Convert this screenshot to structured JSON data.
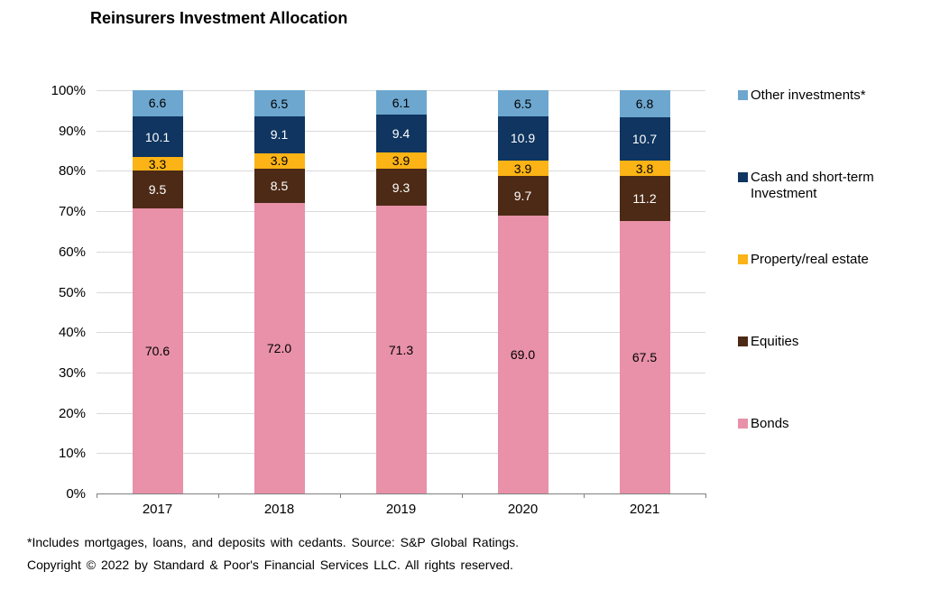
{
  "title": "Reinsurers Investment Allocation",
  "footnotes": [
    "*Includes mortgages, loans, and deposits with cedants. Source: S&P Global Ratings.",
    "Copyright © 2022 by Standard & Poor's Financial Services LLC. All rights reserved."
  ],
  "chart_data": {
    "type": "bar",
    "stacked": true,
    "title": "Reinsurers Investment Allocation",
    "categories": [
      "2017",
      "2018",
      "2019",
      "2020",
      "2021"
    ],
    "series": [
      {
        "name": "Bonds",
        "color": "#E891A9",
        "label_color": "#000000",
        "values": [
          70.6,
          72.0,
          71.3,
          69.0,
          67.5
        ],
        "labels": [
          "70.6",
          "72.0",
          "71.3",
          "69.0",
          "67.5"
        ]
      },
      {
        "name": "Equities",
        "color": "#4C2A15",
        "label_color": "#FFFFFF",
        "values": [
          9.5,
          8.5,
          9.3,
          9.7,
          11.2
        ],
        "labels": [
          "9.5",
          "8.5",
          "9.3",
          "9.7",
          "11.2"
        ]
      },
      {
        "name": "Property/real estate",
        "color": "#FCB316",
        "label_color": "#000000",
        "values": [
          3.3,
          3.9,
          3.9,
          3.9,
          3.8
        ],
        "labels": [
          "3.3",
          "3.9",
          "3.9",
          "3.9",
          "3.8"
        ]
      },
      {
        "name": "Cash and short-term Investment",
        "color": "#0F3560",
        "label_color": "#FFFFFF",
        "values": [
          10.1,
          9.1,
          9.4,
          10.9,
          10.7
        ],
        "labels": [
          "10.1",
          "9.1",
          "9.4",
          "10.9",
          "10.7"
        ]
      },
      {
        "name": "Other investments*",
        "color": "#6DA7CF",
        "label_color": "#000000",
        "values": [
          6.6,
          6.5,
          6.1,
          6.5,
          6.8
        ],
        "labels": [
          "6.6",
          "6.5",
          "6.1",
          "6.5",
          "6.8"
        ]
      }
    ],
    "legend": [
      {
        "label": "Other investments*",
        "color": "#6DA7CF"
      },
      {
        "label": "Cash and short-term Investment",
        "color": "#0F3560"
      },
      {
        "label": "Property/real estate",
        "color": "#FCB316"
      },
      {
        "label": "Equities",
        "color": "#4C2A15"
      },
      {
        "label": "Bonds",
        "color": "#E891A9"
      }
    ],
    "legend_position": "right",
    "grid": true,
    "ylim": [
      0,
      100
    ],
    "y_ticks": [
      "100%",
      "90%",
      "80%",
      "70%",
      "60%",
      "50%",
      "40%",
      "30%",
      "20%",
      "10%",
      "0%"
    ],
    "colors": {
      "gridline": "#d9d9d9",
      "axis": "#808080",
      "background": "#ffffff"
    }
  }
}
